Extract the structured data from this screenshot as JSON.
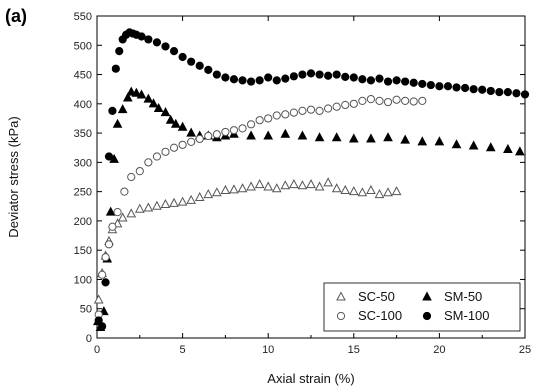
{
  "panel_label": "(a)",
  "chart_data": {
    "type": "scatter",
    "title": "",
    "xlabel": "Axial strain (%)",
    "ylabel": "Deviator stress (kPa)",
    "xlim": [
      0,
      25
    ],
    "ylim": [
      0,
      550
    ],
    "xticks": [
      0,
      5,
      10,
      15,
      20,
      25
    ],
    "yticks": [
      0,
      50,
      100,
      150,
      200,
      250,
      300,
      350,
      400,
      450,
      500,
      550
    ],
    "grid": false,
    "legend_position": "bottom-right",
    "legend_columns": 2,
    "series": [
      {
        "name": "SC-50",
        "marker": "triangle-open",
        "x": [
          0.1,
          0.3,
          0.5,
          0.7,
          0.9,
          1.2,
          1.5,
          2.0,
          2.5,
          3.0,
          3.5,
          4.0,
          4.5,
          5.0,
          5.5,
          6.0,
          6.5,
          7.0,
          7.5,
          8.0,
          8.5,
          9.0,
          9.5,
          10.0,
          10.5,
          11.0,
          11.5,
          12.0,
          12.5,
          13.0,
          13.5,
          14.0,
          14.5,
          15.0,
          15.5,
          16.0,
          16.5,
          17.0,
          17.5
        ],
        "y": [
          65,
          110,
          140,
          165,
          185,
          195,
          205,
          212,
          220,
          222,
          225,
          228,
          230,
          232,
          235,
          240,
          245,
          248,
          252,
          253,
          255,
          258,
          262,
          258,
          255,
          260,
          262,
          260,
          262,
          258,
          265,
          255,
          252,
          250,
          248,
          252,
          245,
          248,
          250
        ]
      },
      {
        "name": "SM-50",
        "marker": "triangle-filled",
        "x": [
          0.05,
          0.2,
          0.4,
          0.6,
          0.8,
          1.0,
          1.2,
          1.5,
          1.8,
          2.0,
          2.3,
          2.6,
          3.0,
          3.3,
          3.6,
          4.0,
          4.3,
          4.6,
          5.0,
          5.5,
          6.0,
          6.5,
          7.0,
          7.5,
          8.0,
          9.0,
          10.0,
          11.0,
          12.0,
          13.0,
          14.0,
          15.0,
          16.0,
          17.0,
          18.0,
          19.0,
          20.0,
          21.0,
          22.0,
          23.0,
          24.0,
          24.7
        ],
        "y": [
          28,
          18,
          45,
          135,
          215,
          305,
          365,
          390,
          410,
          420,
          418,
          415,
          408,
          400,
          392,
          385,
          372,
          365,
          360,
          350,
          345,
          345,
          342,
          345,
          348,
          345,
          345,
          348,
          345,
          342,
          342,
          340,
          340,
          342,
          338,
          335,
          335,
          330,
          328,
          325,
          322,
          318
        ]
      },
      {
        "name": "SC-100",
        "marker": "circle-open",
        "x": [
          0.1,
          0.3,
          0.5,
          0.7,
          0.9,
          1.2,
          1.6,
          2.0,
          2.5,
          3.0,
          3.5,
          4.0,
          4.5,
          5.0,
          5.5,
          6.0,
          6.5,
          7.0,
          7.5,
          8.0,
          8.5,
          9.0,
          9.5,
          10.0,
          10.5,
          11.0,
          11.5,
          12.0,
          12.5,
          13.0,
          13.5,
          14.0,
          14.5,
          15.0,
          15.5,
          16.0,
          16.5,
          17.0,
          17.5,
          18.0,
          18.5,
          19.0
        ],
        "y": [
          40,
          108,
          138,
          160,
          190,
          215,
          250,
          275,
          285,
          300,
          310,
          318,
          325,
          330,
          335,
          340,
          345,
          348,
          352,
          355,
          358,
          365,
          372,
          375,
          380,
          382,
          385,
          388,
          390,
          388,
          392,
          395,
          398,
          400,
          405,
          408,
          405,
          403,
          407,
          405,
          404,
          405
        ]
      },
      {
        "name": "SM-100",
        "marker": "circle-filled",
        "x": [
          0.1,
          0.3,
          0.5,
          0.7,
          0.9,
          1.1,
          1.3,
          1.5,
          1.7,
          1.9,
          2.1,
          2.3,
          2.6,
          3.0,
          3.5,
          4.0,
          4.5,
          5.0,
          5.5,
          6.0,
          6.5,
          7.0,
          7.5,
          8.0,
          8.5,
          9.0,
          9.5,
          10.0,
          10.5,
          11.0,
          11.5,
          12.0,
          12.5,
          13.0,
          13.5,
          14.0,
          14.5,
          15.0,
          15.5,
          16.0,
          16.5,
          17.0,
          17.5,
          18.0,
          18.5,
          19.0,
          19.5,
          20.0,
          20.5,
          21.0,
          21.5,
          22.0,
          22.5,
          23.0,
          23.5,
          24.0,
          24.5,
          25.0
        ],
        "y": [
          30,
          20,
          95,
          310,
          388,
          460,
          490,
          510,
          518,
          522,
          520,
          518,
          515,
          510,
          505,
          498,
          490,
          480,
          472,
          465,
          458,
          450,
          445,
          442,
          440,
          438,
          440,
          445,
          440,
          443,
          447,
          450,
          452,
          450,
          448,
          450,
          446,
          445,
          442,
          440,
          443,
          438,
          440,
          438,
          436,
          434,
          432,
          430,
          430,
          428,
          427,
          425,
          424,
          422,
          420,
          420,
          418,
          416
        ]
      }
    ]
  }
}
